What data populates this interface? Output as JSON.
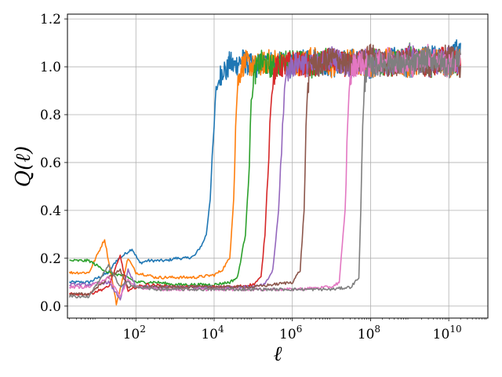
{
  "chart_data": {
    "type": "line",
    "title": "",
    "xlabel": "ℓ",
    "ylabel": "Q(ℓ)",
    "xscale": "log",
    "x_range_log10": [
      0.25,
      11.0
    ],
    "ylim": [
      -0.05,
      1.22
    ],
    "grid": true,
    "legend": "none",
    "x_ticks": [
      {
        "base": "10",
        "exp": "2",
        "log10": 2
      },
      {
        "base": "10",
        "exp": "4",
        "log10": 4
      },
      {
        "base": "10",
        "exp": "6",
        "log10": 6
      },
      {
        "base": "10",
        "exp": "8",
        "log10": 8
      },
      {
        "base": "10",
        "exp": "10",
        "log10": 10
      }
    ],
    "y_ticks": [
      0.0,
      0.2,
      0.4,
      0.6,
      0.8,
      1.0,
      1.2
    ],
    "y_tick_labels": [
      "0.0",
      "0.2",
      "0.4",
      "0.6",
      "0.8",
      "1.0",
      "1.2"
    ],
    "series": [
      {
        "color": "#1f77b4",
        "log10_x": [
          0.3,
          0.8,
          1.3,
          1.5,
          1.9,
          2.1,
          2.3,
          2.5,
          2.8,
          3.0,
          3.3,
          3.5,
          3.7,
          3.8,
          3.9,
          4.0,
          4.05,
          4.15,
          4.25,
          4.3,
          4.4,
          4.5,
          4.7,
          5.0,
          5.5,
          6.0,
          6.5,
          7.0,
          7.5,
          8.0,
          8.5,
          9.0,
          9.5,
          10.0,
          10.3
        ],
        "y": [
          0.1,
          0.1,
          0.14,
          0.19,
          0.24,
          0.18,
          0.19,
          0.19,
          0.19,
          0.2,
          0.2,
          0.21,
          0.26,
          0.3,
          0.45,
          0.75,
          0.9,
          0.96,
          1.0,
          0.97,
          1.02,
          1.0,
          1.03,
          1.0,
          1.02,
          1.0,
          1.04,
          1.0,
          1.03,
          1.0,
          1.04,
          1.0,
          1.05,
          1.02,
          1.1
        ]
      },
      {
        "color": "#ff7f0e",
        "log10_x": [
          0.3,
          0.8,
          1.2,
          1.5,
          1.8,
          2.0,
          2.3,
          2.5,
          3.0,
          3.5,
          4.0,
          4.2,
          4.4,
          4.5,
          4.55,
          4.6,
          4.7,
          4.8,
          5.0,
          5.5,
          6.0,
          6.5,
          7.0,
          7.5,
          8.0,
          8.5,
          9.0,
          9.5,
          10.0,
          10.3
        ],
        "y": [
          0.14,
          0.14,
          0.28,
          0.01,
          0.2,
          0.14,
          0.13,
          0.12,
          0.12,
          0.12,
          0.13,
          0.15,
          0.2,
          0.45,
          0.75,
          0.93,
          1.0,
          1.02,
          1.0,
          1.03,
          1.0,
          1.04,
          1.0,
          1.03,
          1.0,
          1.04,
          1.0,
          1.04,
          1.0,
          1.05
        ]
      },
      {
        "color": "#2ca02c",
        "log10_x": [
          0.3,
          0.8,
          1.3,
          1.6,
          1.8,
          2.0,
          2.5,
          3.0,
          3.5,
          4.0,
          4.4,
          4.6,
          4.8,
          4.9,
          4.95,
          5.0,
          5.1,
          5.2,
          5.5,
          6.0,
          6.5,
          7.0,
          7.5,
          8.0,
          8.5,
          9.0,
          9.5,
          10.0,
          10.3
        ],
        "y": [
          0.19,
          0.19,
          0.14,
          0.13,
          0.12,
          0.1,
          0.1,
          0.09,
          0.09,
          0.09,
          0.1,
          0.12,
          0.3,
          0.6,
          0.85,
          0.95,
          1.0,
          1.02,
          1.0,
          1.03,
          1.0,
          1.04,
          1.0,
          1.04,
          1.0,
          1.05,
          1.0,
          1.04,
          1.0
        ]
      },
      {
        "color": "#d62728",
        "log10_x": [
          0.3,
          0.8,
          1.3,
          1.6,
          1.8,
          2.0,
          2.3,
          3.0,
          3.5,
          4.0,
          4.5,
          5.0,
          5.2,
          5.3,
          5.4,
          5.45,
          5.5,
          5.6,
          5.7,
          6.0,
          6.5,
          7.0,
          7.5,
          8.0,
          8.5,
          9.0,
          9.5,
          10.0,
          10.3
        ],
        "y": [
          0.05,
          0.05,
          0.08,
          0.21,
          0.06,
          0.08,
          0.09,
          0.08,
          0.08,
          0.08,
          0.08,
          0.09,
          0.12,
          0.3,
          0.65,
          0.85,
          0.95,
          1.0,
          1.0,
          1.02,
          1.0,
          1.03,
          1.0,
          1.04,
          1.0,
          1.04,
          1.0,
          1.05,
          1.0
        ]
      },
      {
        "color": "#9467bd",
        "log10_x": [
          0.3,
          0.8,
          1.3,
          1.6,
          1.8,
          2.0,
          2.5,
          3.0,
          3.5,
          4.0,
          4.5,
          5.0,
          5.3,
          5.5,
          5.65,
          5.75,
          5.8,
          5.85,
          5.95,
          6.2,
          6.5,
          7.0,
          7.5,
          8.0,
          8.5,
          9.0,
          9.5,
          10.0,
          10.3
        ],
        "y": [
          0.09,
          0.09,
          0.1,
          0.03,
          0.15,
          0.08,
          0.08,
          0.08,
          0.08,
          0.08,
          0.08,
          0.08,
          0.09,
          0.15,
          0.4,
          0.75,
          0.9,
          0.97,
          1.0,
          1.02,
          1.0,
          1.04,
          1.0,
          1.04,
          1.0,
          1.05,
          1.0,
          1.04,
          1.0
        ]
      },
      {
        "color": "#8c564b",
        "log10_x": [
          0.3,
          0.8,
          1.3,
          1.6,
          1.8,
          2.0,
          2.5,
          3.0,
          4.0,
          5.0,
          5.5,
          6.0,
          6.2,
          6.3,
          6.35,
          6.4,
          6.45,
          6.5,
          6.7,
          7.0,
          7.5,
          8.0,
          8.5,
          9.0,
          9.5,
          10.0,
          10.3
        ],
        "y": [
          0.05,
          0.05,
          0.12,
          0.15,
          0.08,
          0.08,
          0.08,
          0.08,
          0.08,
          0.08,
          0.09,
          0.1,
          0.15,
          0.4,
          0.75,
          0.92,
          1.0,
          1.03,
          1.0,
          1.04,
          1.0,
          1.05,
          1.0,
          1.04,
          1.0,
          1.05,
          1.0
        ]
      },
      {
        "color": "#e377c2",
        "log10_x": [
          0.3,
          0.8,
          1.3,
          1.6,
          1.8,
          2.0,
          2.5,
          3.0,
          4.0,
          5.0,
          6.0,
          7.0,
          7.2,
          7.35,
          7.42,
          7.48,
          7.55,
          7.7,
          8.0,
          8.5,
          9.0,
          9.5,
          10.0,
          10.3
        ],
        "y": [
          0.08,
          0.08,
          0.12,
          0.04,
          0.11,
          0.08,
          0.07,
          0.07,
          0.07,
          0.07,
          0.07,
          0.08,
          0.1,
          0.4,
          0.8,
          0.95,
          1.0,
          1.02,
          1.0,
          1.04,
          1.0,
          1.05,
          1.0,
          1.05
        ]
      },
      {
        "color": "#7f7f7f",
        "log10_x": [
          0.3,
          0.8,
          1.3,
          1.6,
          1.8,
          2.0,
          2.5,
          3.0,
          4.0,
          5.0,
          6.0,
          7.0,
          7.5,
          7.7,
          7.75,
          7.8,
          7.85,
          7.9,
          8.0,
          8.5,
          9.0,
          9.5,
          10.0,
          10.3
        ],
        "y": [
          0.04,
          0.04,
          0.17,
          0.08,
          0.1,
          0.08,
          0.07,
          0.07,
          0.07,
          0.07,
          0.07,
          0.07,
          0.08,
          0.12,
          0.4,
          0.75,
          0.92,
          1.0,
          1.0,
          1.02,
          1.0,
          1.04,
          1.0,
          1.05
        ]
      }
    ]
  }
}
